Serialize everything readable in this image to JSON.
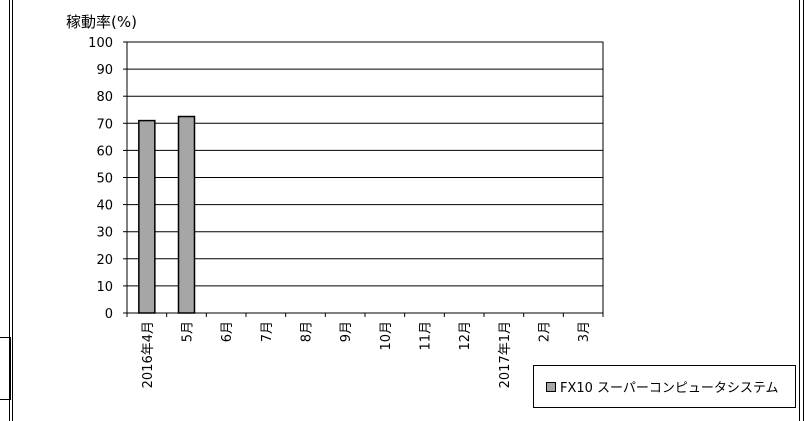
{
  "chart_data": {
    "type": "bar",
    "title": "",
    "ylabel": "稼動率(%)",
    "xlabel": "",
    "ylim": [
      0,
      100
    ],
    "yticks": [
      0,
      10,
      20,
      30,
      40,
      50,
      60,
      70,
      80,
      90,
      100
    ],
    "grid": true,
    "categories": [
      "2016年4月",
      "5月",
      "6月",
      "7月",
      "8月",
      "9月",
      "10月",
      "11月",
      "12月",
      "2017年1月",
      "2月",
      "3月"
    ],
    "series": [
      {
        "name": "FX10 スーパーコンピュータシステム",
        "color": "#a6a6a6",
        "values": [
          71,
          72.5,
          null,
          null,
          null,
          null,
          null,
          null,
          null,
          null,
          null,
          null
        ]
      }
    ],
    "legend_position": "bottom-right"
  }
}
